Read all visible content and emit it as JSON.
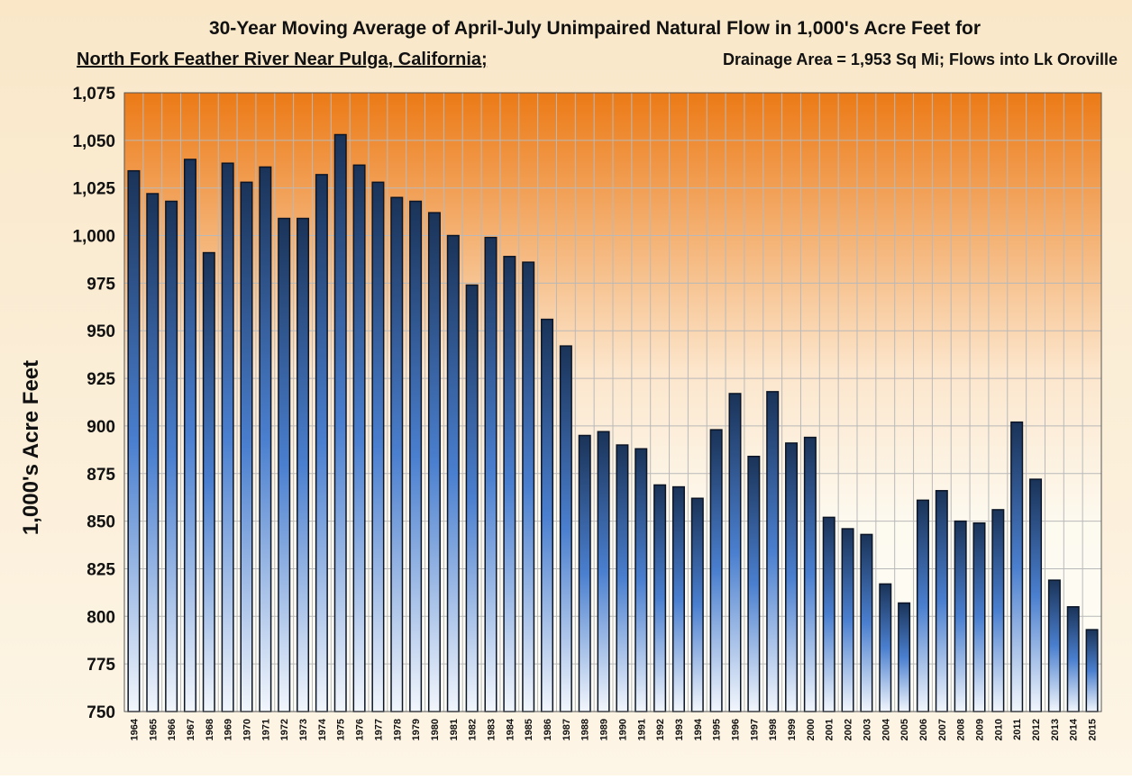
{
  "chart_data": {
    "type": "bar",
    "title": "30-Year Moving Average of April-July Unimpaired Natural Flow in 1,000's Acre Feet for",
    "subtitle": "North Fork Feather River Near Pulga, California;",
    "note": "Drainage Area =  1,953 Sq Mi;  Flows into Lk Oroville",
    "y_label": "1,000's Acre Feet",
    "categories": [
      "1964",
      "1965",
      "1966",
      "1967",
      "1968",
      "1969",
      "1970",
      "1971",
      "1972",
      "1973",
      "1974",
      "1975",
      "1976",
      "1977",
      "1978",
      "1979",
      "1980",
      "1981",
      "1982",
      "1983",
      "1984",
      "1985",
      "1986",
      "1987",
      "1988",
      "1989",
      "1990",
      "1991",
      "1992",
      "1993",
      "1994",
      "1995",
      "1996",
      "1997",
      "1998",
      "1999",
      "2000",
      "2001",
      "2002",
      "2003",
      "2004",
      "2005",
      "2006",
      "2007",
      "2008",
      "2009",
      "2010",
      "2011",
      "2012",
      "2013",
      "2014",
      "2015"
    ],
    "values": [
      1034,
      1022,
      1018,
      1040,
      991,
      1038,
      1028,
      1036,
      1009,
      1009,
      1032,
      1053,
      1037,
      1028,
      1020,
      1018,
      1012,
      1000,
      974,
      999,
      989,
      986,
      956,
      942,
      895,
      897,
      890,
      888,
      869,
      868,
      862,
      898,
      917,
      884,
      918,
      891,
      894,
      852,
      846,
      843,
      817,
      807,
      861,
      866,
      850,
      849,
      856,
      902,
      872,
      819,
      805,
      793
    ],
    "color": "#1a3358",
    "ylim": [
      750,
      1075
    ],
    "yticks": [
      750,
      775,
      800,
      825,
      850,
      875,
      900,
      925,
      950,
      975,
      {
        "value": 1000,
        "label": "1,000"
      },
      {
        "value": 1025,
        "label": "1,025"
      },
      {
        "value": 1050,
        "label": "1,050"
      },
      {
        "value": 1075,
        "label": "1,075"
      }
    ],
    "grid": true
  }
}
